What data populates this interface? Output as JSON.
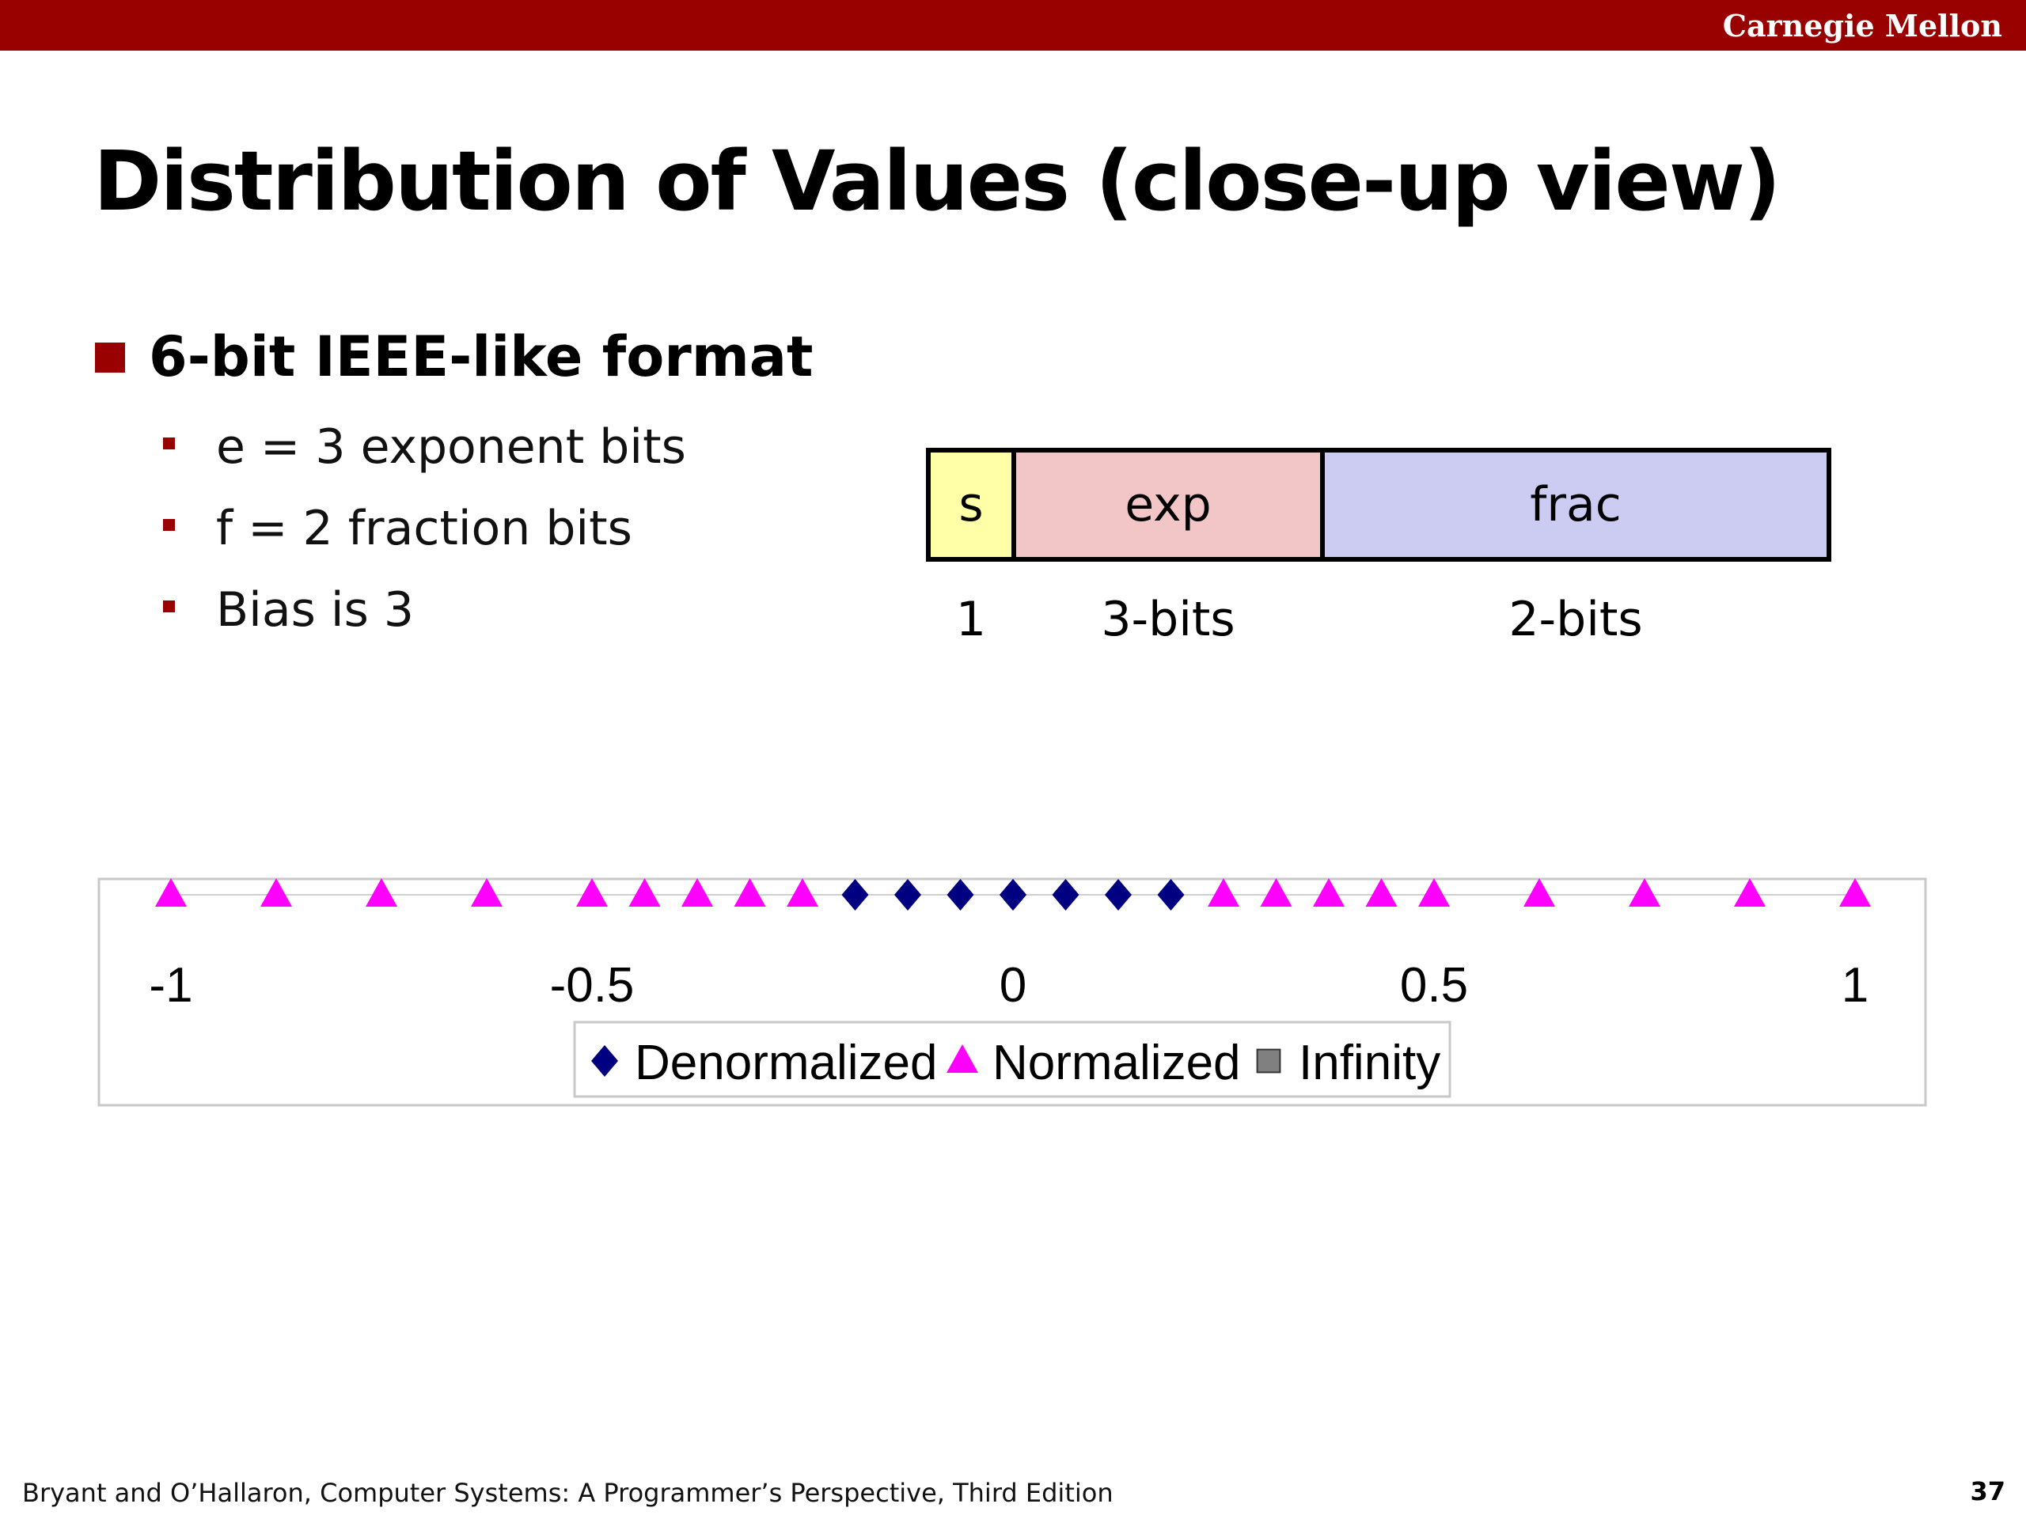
{
  "header": {
    "brand": "Carnegie Mellon"
  },
  "slide": {
    "title": "Distribution of Values (close-up view)",
    "bullet": "6-bit IEEE-like format",
    "subbullets": [
      "e = 3 exponent bits",
      "f = 2 fraction bits",
      "Bias is 3"
    ]
  },
  "format": {
    "fields": [
      {
        "name": "s",
        "bits": "1",
        "color": "#FFFFA8"
      },
      {
        "name": "exp",
        "bits": "3-bits",
        "color": "#F2C6C6"
      },
      {
        "name": "frac",
        "bits": "2-bits",
        "color": "#CCCCF2"
      }
    ]
  },
  "chart_data": {
    "type": "scatter",
    "xlim": [
      -1,
      1
    ],
    "xticks": [
      "-1",
      "-0.5",
      "0",
      "0.5",
      "1"
    ],
    "xtick_values": [
      -1,
      -0.5,
      0,
      0.5,
      1
    ],
    "legend_position": "bottom-center",
    "series": [
      {
        "name": "Denormalized",
        "marker": "diamond",
        "color": "#000080",
        "x": [
          -0.1875,
          -0.125,
          -0.0625,
          -0.0,
          0.0,
          0.0625,
          0.125,
          0.1875
        ]
      },
      {
        "name": "Normalized",
        "marker": "triangle",
        "color": "#FF00FF",
        "x": [
          -1.0,
          -0.875,
          -0.75,
          -0.625,
          -0.5,
          -0.4375,
          -0.375,
          -0.3125,
          -0.25,
          0.25,
          0.3125,
          0.375,
          0.4375,
          0.5,
          0.625,
          0.75,
          0.875,
          1.0
        ]
      },
      {
        "name": "Infinity",
        "marker": "square",
        "color": "#808080",
        "x": []
      }
    ]
  },
  "footer": {
    "citation": "Bryant and O’Hallaron, Computer Systems: A Programmer’s Perspective, Third Edition",
    "page": "37"
  }
}
